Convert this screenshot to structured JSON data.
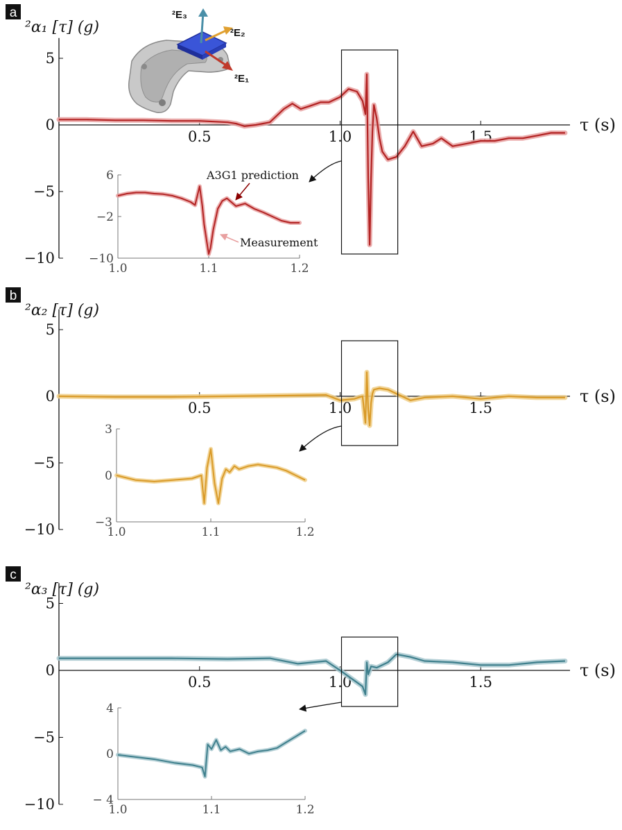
{
  "figure": {
    "bracket_axis_symbol": "τ",
    "time_axis_label": "τ (s)",
    "panels": [
      {
        "letter": "a",
        "ylabel": "²α₁ [τ]  (g)"
      },
      {
        "letter": "b",
        "ylabel": "²α₂ [τ]  (g)"
      },
      {
        "letter": "c",
        "ylabel": "²α₃ [τ]  (g)"
      }
    ],
    "device_vectors": [
      "²E₃",
      "²E₂",
      "²E₁"
    ],
    "annotations": {
      "prediction": "A3G1 prediction",
      "measurement": "Measurement"
    }
  },
  "colors": {
    "panel_a": "#b22222",
    "panel_a_band": "#e8a0a0",
    "panel_b": "#d99a28",
    "panel_b_band": "#f0cf8a",
    "panel_c": "#3e7f8c",
    "panel_c_band": "#a8c8cf",
    "vec_e3": "#4a8fa8",
    "vec_e2": "#e0a030",
    "vec_e1": "#c0392b"
  },
  "chart_data": [
    {
      "type": "line",
      "title": "",
      "ylabel": "²α₁ [τ]  (g)",
      "xlabel": "τ (s)",
      "xlim": [
        0.0,
        1.8
      ],
      "ylim": [
        -10,
        6
      ],
      "xticks": [
        "0.5",
        "1.0",
        "1.5"
      ],
      "yticks": [
        "5",
        "0",
        "−5",
        "−10"
      ],
      "x": [
        0.0,
        0.1,
        0.2,
        0.3,
        0.4,
        0.5,
        0.55,
        0.6,
        0.63,
        0.66,
        0.7,
        0.75,
        0.8,
        0.83,
        0.86,
        0.89,
        0.93,
        0.96,
        1.0,
        1.03,
        1.06,
        1.08,
        1.09,
        1.095,
        1.1,
        1.105,
        1.11,
        1.115,
        1.12,
        1.13,
        1.14,
        1.15,
        1.17,
        1.2,
        1.23,
        1.26,
        1.29,
        1.33,
        1.36,
        1.4,
        1.45,
        1.5,
        1.55,
        1.6,
        1.65,
        1.7,
        1.75,
        1.8
      ],
      "values": [
        0.4,
        0.4,
        0.35,
        0.35,
        0.3,
        0.3,
        0.25,
        0.2,
        0.1,
        -0.1,
        0.0,
        0.2,
        1.2,
        1.6,
        1.2,
        1.4,
        1.7,
        1.7,
        2.1,
        2.7,
        2.5,
        1.8,
        0.8,
        3.8,
        -4.0,
        -9.0,
        -4.0,
        -0.5,
        1.5,
        0.5,
        -1.0,
        -2.0,
        -2.6,
        -2.4,
        -1.6,
        -0.5,
        -1.6,
        -1.4,
        -1.0,
        -1.6,
        -1.4,
        -1.2,
        -1.2,
        -1.0,
        -1.0,
        -0.8,
        -0.6,
        -0.6
      ],
      "series": [
        {
          "name": "A3G1 prediction"
        },
        {
          "name": "Measurement"
        }
      ],
      "zoom_box": {
        "x": [
          1.0,
          1.2
        ],
        "y": [
          -10,
          6
        ]
      },
      "inset": {
        "xlim": [
          1.0,
          1.2
        ],
        "ylim": [
          -10,
          6
        ],
        "xticks": [
          "1.0",
          "1.1",
          "1.2"
        ],
        "yticks": [
          "6",
          "−2",
          "−10"
        ],
        "x": [
          1.0,
          1.01,
          1.02,
          1.03,
          1.04,
          1.05,
          1.06,
          1.07,
          1.08,
          1.085,
          1.09,
          1.093,
          1.095,
          1.098,
          1.1,
          1.102,
          1.105,
          1.11,
          1.115,
          1.12,
          1.13,
          1.14,
          1.15,
          1.16,
          1.17,
          1.18,
          1.19,
          1.2
        ],
        "values": [
          2.0,
          2.4,
          2.6,
          2.6,
          2.4,
          2.3,
          2.0,
          1.5,
          0.8,
          0.2,
          3.8,
          0.0,
          -3.5,
          -7.0,
          -9.2,
          -8.0,
          -4.5,
          -0.5,
          1.0,
          1.5,
          0.0,
          0.5,
          -0.5,
          -1.2,
          -2.0,
          -2.8,
          -3.2,
          -3.2
        ]
      }
    },
    {
      "type": "line",
      "title": "",
      "ylabel": "²α₂ [τ]  (g)",
      "xlabel": "τ (s)",
      "xlim": [
        0.0,
        1.8
      ],
      "ylim": [
        -10,
        6
      ],
      "xticks": [
        "0.5",
        "1.0",
        "1.5"
      ],
      "yticks": [
        "5",
        "0",
        "−5",
        "−10"
      ],
      "x": [
        0.0,
        0.2,
        0.4,
        0.6,
        0.8,
        0.95,
        1.0,
        1.05,
        1.08,
        1.09,
        1.095,
        1.1,
        1.105,
        1.11,
        1.115,
        1.12,
        1.14,
        1.17,
        1.2,
        1.25,
        1.3,
        1.4,
        1.5,
        1.6,
        1.7,
        1.8
      ],
      "values": [
        0.0,
        -0.05,
        -0.05,
        0.0,
        0.05,
        0.1,
        -0.3,
        -0.2,
        0.0,
        -2.0,
        1.8,
        -1.0,
        -2.2,
        -0.5,
        0.2,
        0.5,
        0.6,
        0.5,
        0.2,
        -0.3,
        -0.1,
        0.0,
        -0.2,
        0.0,
        -0.1,
        -0.1
      ],
      "series": [
        {
          "name": "A3G1 prediction"
        },
        {
          "name": "Measurement"
        }
      ],
      "zoom_box": {
        "x": [
          1.0,
          1.2
        ],
        "y": [
          -4,
          4
        ]
      },
      "inset": {
        "xlim": [
          1.0,
          1.2
        ],
        "ylim": [
          -3,
          3
        ],
        "xticks": [
          "1.0",
          "1.1",
          "1.2"
        ],
        "yticks": [
          "3",
          "0",
          "−3"
        ],
        "x": [
          1.0,
          1.02,
          1.04,
          1.06,
          1.08,
          1.09,
          1.093,
          1.096,
          1.1,
          1.104,
          1.108,
          1.112,
          1.116,
          1.12,
          1.125,
          1.13,
          1.14,
          1.15,
          1.16,
          1.17,
          1.18,
          1.19,
          1.2
        ],
        "values": [
          0.0,
          -0.3,
          -0.4,
          -0.3,
          -0.2,
          0.0,
          -1.8,
          0.5,
          1.7,
          -0.5,
          -1.8,
          -0.2,
          0.4,
          0.2,
          0.6,
          0.4,
          0.6,
          0.7,
          0.6,
          0.5,
          0.3,
          0.0,
          -0.3
        ]
      }
    },
    {
      "type": "line",
      "title": "",
      "ylabel": "²α₃ [τ]  (g)",
      "xlabel": "τ (s)",
      "xlim": [
        0.0,
        1.8
      ],
      "ylim": [
        -10,
        6
      ],
      "xticks": [
        "0.5",
        "1.0",
        "1.5"
      ],
      "yticks": [
        "5",
        "0",
        "−5",
        "−10"
      ],
      "x": [
        0.0,
        0.2,
        0.4,
        0.6,
        0.75,
        0.85,
        0.95,
        1.0,
        1.04,
        1.08,
        1.09,
        1.095,
        1.1,
        1.11,
        1.13,
        1.17,
        1.2,
        1.25,
        1.3,
        1.4,
        1.5,
        1.6,
        1.7,
        1.8
      ],
      "values": [
        0.9,
        0.9,
        0.9,
        0.85,
        0.9,
        0.5,
        0.7,
        0.0,
        -0.6,
        -1.2,
        -1.8,
        0.6,
        -0.3,
        0.3,
        0.2,
        0.6,
        1.2,
        1.0,
        0.7,
        0.6,
        0.4,
        0.4,
        0.6,
        0.7
      ],
      "series": [
        {
          "name": "A3G1 prediction"
        },
        {
          "name": "Measurement"
        }
      ],
      "zoom_box": {
        "x": [
          1.0,
          1.2
        ],
        "y": [
          -3,
          3
        ]
      },
      "inset": {
        "xlim": [
          1.0,
          1.2
        ],
        "ylim": [
          -4,
          4
        ],
        "xticks": [
          "1.0",
          "1.1",
          "1.2"
        ],
        "yticks": [
          "4",
          "0",
          "− 4"
        ],
        "x": [
          1.0,
          1.02,
          1.04,
          1.06,
          1.08,
          1.09,
          1.093,
          1.096,
          1.1,
          1.105,
          1.11,
          1.115,
          1.12,
          1.13,
          1.14,
          1.15,
          1.16,
          1.17,
          1.18,
          1.19,
          1.2
        ],
        "values": [
          -0.1,
          -0.3,
          -0.5,
          -0.8,
          -1.0,
          -1.2,
          -2.0,
          0.8,
          0.4,
          1.2,
          0.3,
          0.6,
          0.2,
          0.4,
          0.0,
          0.2,
          0.3,
          0.5,
          1.0,
          1.5,
          2.0
        ]
      }
    }
  ]
}
